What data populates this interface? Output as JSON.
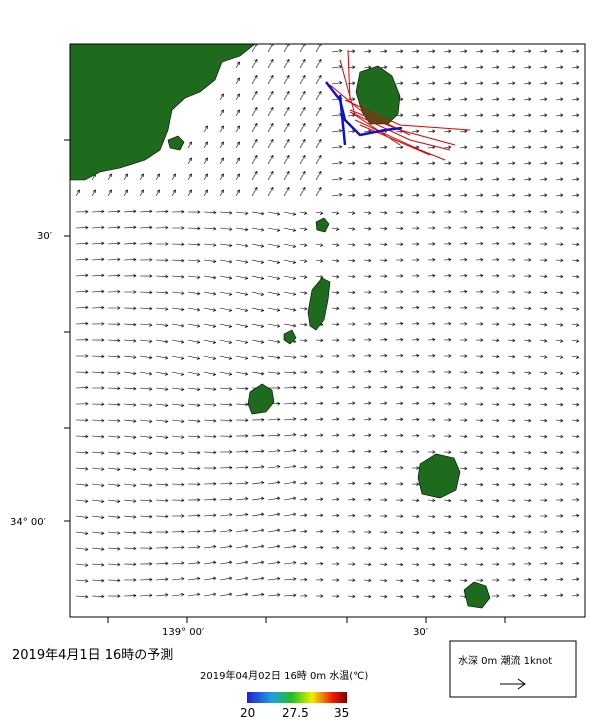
{
  "map": {
    "lat_labels": [
      "30′",
      "34° 00′"
    ],
    "lon_labels": [
      "139° 00′",
      "30′"
    ]
  },
  "caption": "2019年4月1日 16時の予測",
  "colorbar": {
    "title": "2019年04月02日 16時 0m 水温(℃)",
    "ticks": [
      20,
      27.5,
      35
    ]
  },
  "legend": {
    "text": "水深 0m 潮流 1knot"
  }
}
